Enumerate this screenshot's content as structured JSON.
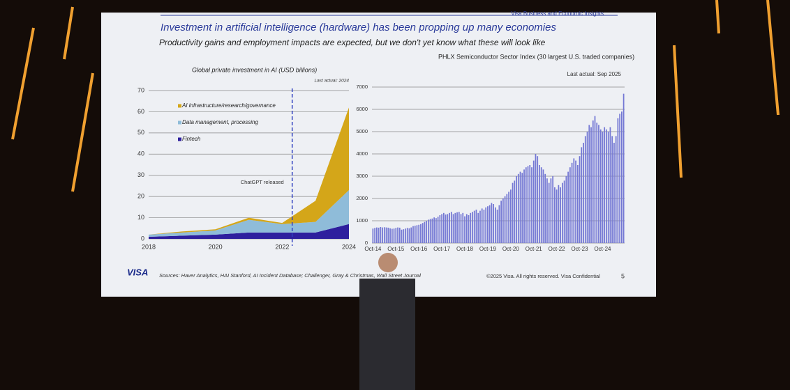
{
  "slide": {
    "header": "Visa Business and Economic Insights",
    "title": "Investment in artificial intelligence (hardware) has been propping up many economies",
    "subtitle": "Productivity gains and employment impacts are expected, but we don't yet know what these will look like",
    "logo": "VISA",
    "sources": "Sources: Haver Analytics, HAI Stanford, AI Incident Database; Challenger, Gray & Christmas, Wall Street Journal",
    "copyright": "©2025 Visa. All rights reserved. Visa Confidential",
    "page": "5"
  },
  "chart_data": [
    {
      "type": "area",
      "title": "Global private investment in AI (USD billions)",
      "note": "Last actual: 2024",
      "x": [
        2018,
        2019,
        2020,
        2021,
        2022,
        2023,
        2024
      ],
      "series": [
        {
          "name": "Fintech",
          "color": "#2e1f9e",
          "values": [
            1,
            1.5,
            2,
            3,
            3,
            3,
            7
          ]
        },
        {
          "name": "Data management, processing",
          "color": "#8fbcd9",
          "values": [
            1,
            1.5,
            2,
            6,
            4,
            5,
            16
          ]
        },
        {
          "name": "AI infrastructure/research/governance",
          "color": "#d4a619",
          "values": [
            0,
            0.5,
            0.5,
            1,
            0.5,
            10,
            39
          ]
        }
      ],
      "xlim": [
        2018,
        2024
      ],
      "xticks": [
        2018,
        2020,
        2022,
        2024
      ],
      "ylim": [
        0,
        70
      ],
      "yticks": [
        0,
        10,
        20,
        30,
        40,
        50,
        60,
        70
      ],
      "grid": true,
      "annotation": {
        "text": "ChatGPT released",
        "x": 2022.3
      }
    },
    {
      "type": "bar",
      "title": "PHLX Semiconductor Sector Index (30 largest U.S. traded companies)",
      "note": "Last actual: Sep 2025",
      "color": "#7478d4",
      "categories": [
        "Oct-14",
        null,
        null,
        null,
        null,
        null,
        null,
        null,
        null,
        null,
        null,
        null,
        "Oct-15",
        null,
        null,
        null,
        null,
        null,
        null,
        null,
        null,
        null,
        null,
        null,
        "Oct-16",
        null,
        null,
        null,
        null,
        null,
        null,
        null,
        null,
        null,
        null,
        null,
        "Oct-17",
        null,
        null,
        null,
        null,
        null,
        null,
        null,
        null,
        null,
        null,
        null,
        "Oct-18",
        null,
        null,
        null,
        null,
        null,
        null,
        null,
        null,
        null,
        null,
        null,
        "Oct-19",
        null,
        null,
        null,
        null,
        null,
        null,
        null,
        null,
        null,
        null,
        null,
        "Oct-20",
        null,
        null,
        null,
        null,
        null,
        null,
        null,
        null,
        null,
        null,
        null,
        "Oct-21",
        null,
        null,
        null,
        null,
        null,
        null,
        null,
        null,
        null,
        null,
        null,
        "Oct-22",
        null,
        null,
        null,
        null,
        null,
        null,
        null,
        null,
        null,
        null,
        null,
        "Oct-23",
        null,
        null,
        null,
        null,
        null,
        null,
        null,
        null,
        null,
        null,
        null,
        "Oct-24",
        null,
        null,
        null,
        null,
        null,
        null,
        null,
        null,
        null,
        null,
        null
      ],
      "values": [
        650,
        680,
        700,
        690,
        720,
        700,
        710,
        700,
        690,
        660,
        640,
        650,
        680,
        700,
        690,
        600,
        620,
        650,
        680,
        660,
        700,
        760,
        780,
        800,
        820,
        850,
        900,
        950,
        1000,
        1050,
        1080,
        1100,
        1150,
        1120,
        1180,
        1250,
        1300,
        1350,
        1280,
        1300,
        1350,
        1400,
        1300,
        1350,
        1380,
        1400,
        1300,
        1350,
        1200,
        1300,
        1250,
        1350,
        1400,
        1450,
        1500,
        1350,
        1450,
        1550,
        1500,
        1600,
        1650,
        1700,
        1800,
        1750,
        1600,
        1500,
        1700,
        1900,
        2000,
        2100,
        2200,
        2300,
        2400,
        2700,
        2800,
        3000,
        3100,
        3200,
        3150,
        3300,
        3400,
        3450,
        3500,
        3400,
        3700,
        4000,
        3900,
        3500,
        3400,
        3300,
        3100,
        2900,
        2700,
        2900,
        3000,
        2500,
        2400,
        2600,
        2500,
        2700,
        2800,
        3000,
        3200,
        3400,
        3600,
        3800,
        3700,
        3500,
        3900,
        4300,
        4500,
        4800,
        5000,
        5300,
        5200,
        5500,
        5700,
        5400,
        5300,
        5100,
        5000,
        5200,
        5100,
        5000,
        5200,
        4800,
        4500,
        4800,
        5600,
        5800,
        5900,
        6700
      ],
      "ylim": [
        0,
        7000
      ],
      "yticks": [
        0,
        1000,
        2000,
        3000,
        4000,
        5000,
        6000,
        7000
      ],
      "grid": true
    }
  ]
}
